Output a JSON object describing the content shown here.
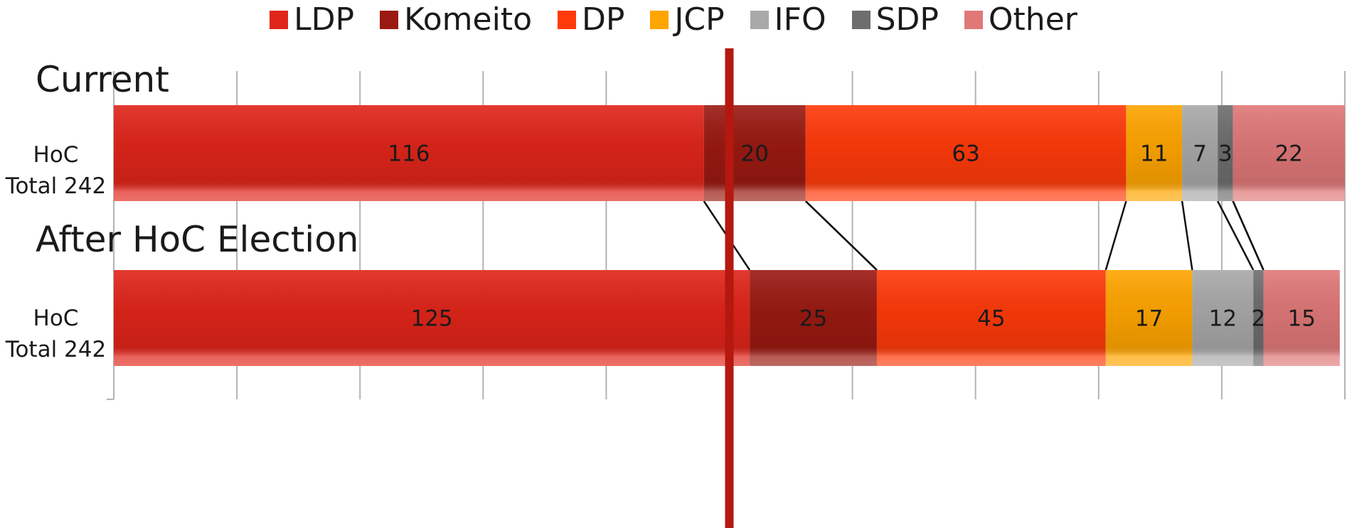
{
  "legend": [
    {
      "name": "LDP",
      "color": "#e0251a"
    },
    {
      "name": "Komeito",
      "color": "#9a1a12"
    },
    {
      "name": "DP",
      "color": "#ff3a0a"
    },
    {
      "name": "JCP",
      "color": "#ffa500"
    },
    {
      "name": "IFO",
      "color": "#a9a9a9"
    },
    {
      "name": "SDP",
      "color": "#6e6e6e"
    },
    {
      "name": "Other",
      "color": "#e07878"
    }
  ],
  "groups": [
    {
      "title": "Current",
      "label_line1": "HoC",
      "label_line2": "Total 242"
    },
    {
      "title": "After HoC Election",
      "label_line1": "HoC",
      "label_line2": "Total 242"
    }
  ],
  "chart_data": {
    "type": "bar",
    "orientation": "horizontal",
    "stacked": true,
    "categories": [
      "Current",
      "After HoC Election"
    ],
    "series": [
      {
        "name": "LDP",
        "values": [
          116,
          125
        ]
      },
      {
        "name": "Komeito",
        "values": [
          20,
          25
        ]
      },
      {
        "name": "DP",
        "values": [
          63,
          45
        ]
      },
      {
        "name": "JCP",
        "values": [
          11,
          17
        ]
      },
      {
        "name": "IFO",
        "values": [
          7,
          12
        ]
      },
      {
        "name": "SDP",
        "values": [
          3,
          2
        ]
      },
      {
        "name": "Other",
        "values": [
          22,
          15
        ]
      }
    ],
    "xlim": [
      0,
      242
    ],
    "majority_line": 121,
    "grid": true,
    "legend_position": "top",
    "colors": [
      "#e0251a",
      "#9a1a12",
      "#ff3a0a",
      "#ffa500",
      "#a9a9a9",
      "#6e6e6e",
      "#e07878"
    ]
  }
}
